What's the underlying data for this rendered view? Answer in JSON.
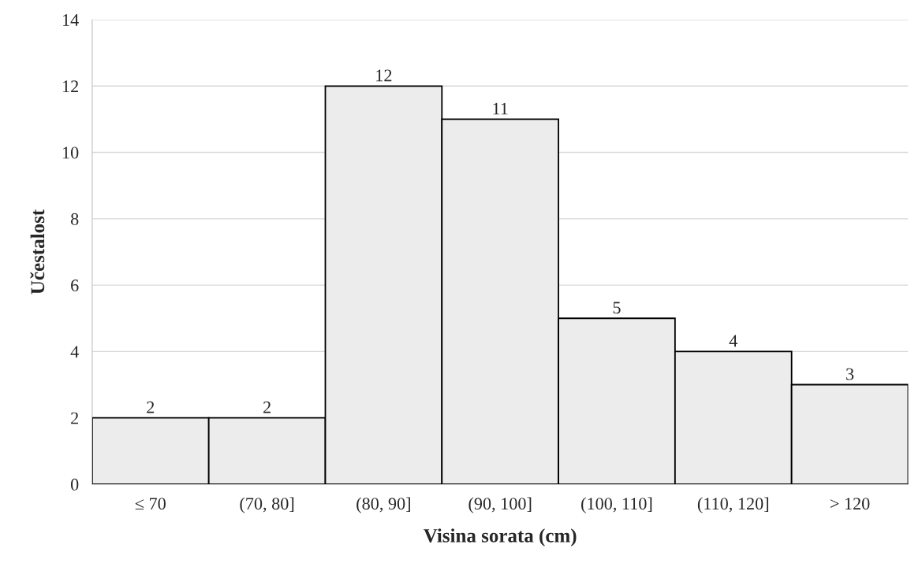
{
  "chart_data": {
    "type": "bar",
    "xlabel": "Visina sorata (cm)",
    "ylabel": "Učestalost",
    "categories": [
      "≤ 70",
      "(70, 80]",
      "(80, 90]",
      "(90, 100]",
      "(100, 110]",
      "(110, 120]",
      "> 120"
    ],
    "values": [
      2,
      2,
      12,
      11,
      5,
      4,
      3
    ],
    "color": "#ececec",
    "ylim": [
      0,
      14
    ],
    "yticks": [
      0,
      2,
      4,
      6,
      8,
      10,
      12,
      14
    ],
    "grid": "y",
    "data_labels": true
  }
}
